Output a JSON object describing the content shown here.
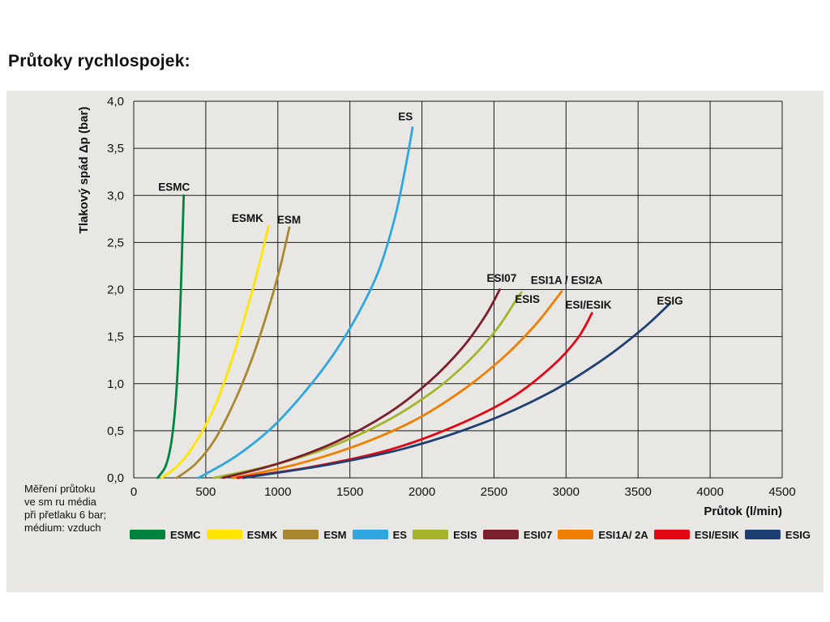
{
  "page": {
    "title": "Průtoky rychlospojek:"
  },
  "note": {
    "lines": [
      "Měření průtoku",
      "ve sm ru média",
      "při přetlaku 6 bar;",
      "médium: vzduch"
    ]
  },
  "chart_data": {
    "type": "line",
    "title": "",
    "xlabel": "Průtok (l/min)",
    "ylabel": "Tlakový spád Δp (bar)",
    "xlim": [
      0,
      4500
    ],
    "ylim": [
      0,
      4
    ],
    "grid": true,
    "legend_position": "bottom",
    "x_ticks": {
      "values": [
        0,
        500,
        1000,
        1500,
        2000,
        2500,
        3000,
        3500,
        4000,
        4500
      ],
      "labels": [
        "0",
        "500",
        "1000",
        "1500",
        "2000",
        "2500",
        "3000",
        "3500",
        "4000",
        "4500"
      ]
    },
    "y_ticks": {
      "values": [
        0,
        0.5,
        1,
        1.5,
        2,
        2.5,
        3,
        3.5,
        4
      ],
      "labels": [
        "0,0",
        "0,5",
        "1,0",
        "1,5",
        "2,0",
        "2,5",
        "3,0",
        "3,5",
        "4,0"
      ]
    },
    "series": [
      {
        "name": "ESMC",
        "color": "#00843d",
        "label": {
          "text": "ESMC",
          "x": 170,
          "y": 3.05
        },
        "points": [
          [
            165,
            0
          ],
          [
            220,
            0.12
          ],
          [
            258,
            0.35
          ],
          [
            288,
            0.75
          ],
          [
            310,
            1.3
          ],
          [
            326,
            1.95
          ],
          [
            338,
            2.55
          ],
          [
            347,
            3.0
          ]
        ]
      },
      {
        "name": "ESMK",
        "color": "#ffe500",
        "label": {
          "text": "ESMK",
          "x": 680,
          "y": 2.72
        },
        "points": [
          [
            195,
            0
          ],
          [
            320,
            0.15
          ],
          [
            440,
            0.4
          ],
          [
            560,
            0.75
          ],
          [
            670,
            1.2
          ],
          [
            770,
            1.7
          ],
          [
            860,
            2.2
          ],
          [
            935,
            2.67
          ]
        ]
      },
      {
        "name": "ESM",
        "color": "#a8872e",
        "label": {
          "text": "ESM",
          "x": 995,
          "y": 2.7
        },
        "points": [
          [
            300,
            0
          ],
          [
            430,
            0.15
          ],
          [
            560,
            0.4
          ],
          [
            690,
            0.78
          ],
          [
            810,
            1.22
          ],
          [
            920,
            1.72
          ],
          [
            1010,
            2.2
          ],
          [
            1080,
            2.66
          ]
        ]
      },
      {
        "name": "ES",
        "color": "#2ea7e0",
        "label": {
          "text": "ES",
          "x": 1835,
          "y": 3.8
        },
        "points": [
          [
            450,
            0
          ],
          [
            700,
            0.22
          ],
          [
            950,
            0.52
          ],
          [
            1180,
            0.9
          ],
          [
            1390,
            1.32
          ],
          [
            1560,
            1.75
          ],
          [
            1700,
            2.2
          ],
          [
            1810,
            2.75
          ],
          [
            1880,
            3.25
          ],
          [
            1935,
            3.72
          ]
        ]
      },
      {
        "name": "ESIS",
        "color": "#a4b32a",
        "label": {
          "text": "ESIS",
          "x": 2645,
          "y": 1.86
        },
        "points": [
          [
            560,
            0
          ],
          [
            950,
            0.13
          ],
          [
            1350,
            0.32
          ],
          [
            1750,
            0.6
          ],
          [
            2080,
            0.92
          ],
          [
            2330,
            1.25
          ],
          [
            2520,
            1.58
          ],
          [
            2650,
            1.88
          ],
          [
            2690,
            1.97
          ]
        ]
      },
      {
        "name": "ESI07",
        "color": "#7a1f2b",
        "label": {
          "text": "ESI07",
          "x": 2450,
          "y": 2.08
        },
        "points": [
          [
            620,
            0
          ],
          [
            1000,
            0.15
          ],
          [
            1400,
            0.38
          ],
          [
            1760,
            0.68
          ],
          [
            2050,
            1.02
          ],
          [
            2280,
            1.38
          ],
          [
            2440,
            1.72
          ],
          [
            2540,
            2.0
          ]
        ]
      },
      {
        "name": "ESI1A-ESI2A",
        "color": "#ee7f00",
        "label": {
          "text": "ESI1A / ESI2A",
          "x": 2755,
          "y": 2.06
        },
        "points": [
          [
            690,
            0
          ],
          [
            1120,
            0.14
          ],
          [
            1560,
            0.35
          ],
          [
            1960,
            0.62
          ],
          [
            2300,
            0.95
          ],
          [
            2580,
            1.3
          ],
          [
            2790,
            1.63
          ],
          [
            2930,
            1.9
          ],
          [
            2970,
            1.98
          ]
        ]
      },
      {
        "name": "ESI-ESIK",
        "color": "#e30613",
        "label": {
          "text": "ESI/ESIK",
          "x": 2995,
          "y": 1.8
        },
        "points": [
          [
            720,
            0
          ],
          [
            1250,
            0.12
          ],
          [
            1780,
            0.3
          ],
          [
            2230,
            0.55
          ],
          [
            2620,
            0.85
          ],
          [
            2900,
            1.18
          ],
          [
            3080,
            1.48
          ],
          [
            3180,
            1.75
          ]
        ]
      },
      {
        "name": "ESIG",
        "color": "#1d3f72",
        "label": {
          "text": "ESIG",
          "x": 3630,
          "y": 1.84
        },
        "points": [
          [
            760,
            0
          ],
          [
            1350,
            0.14
          ],
          [
            1900,
            0.32
          ],
          [
            2420,
            0.58
          ],
          [
            2880,
            0.9
          ],
          [
            3250,
            1.25
          ],
          [
            3530,
            1.58
          ],
          [
            3720,
            1.85
          ]
        ]
      }
    ]
  },
  "legend": {
    "items": [
      {
        "label": "ESMC",
        "color": "#00843d"
      },
      {
        "label": "ESMK",
        "color": "#ffe500"
      },
      {
        "label": "ESM",
        "color": "#a8872e"
      },
      {
        "label": "ES",
        "color": "#2ea7e0"
      },
      {
        "label": "ESIS",
        "color": "#a4b32a"
      },
      {
        "label": "ESI07",
        "color": "#7a1f2b"
      },
      {
        "label": "ESI1A/ 2A",
        "color": "#ee7f00"
      },
      {
        "label": "ESI/ESIK",
        "color": "#e30613"
      },
      {
        "label": "ESIG",
        "color": "#1d3f72"
      }
    ]
  },
  "colors": {
    "panel_background": "#e8e7e4",
    "page_background": "#ffffff",
    "grid": "#1a1a1a",
    "text": "#111111"
  }
}
